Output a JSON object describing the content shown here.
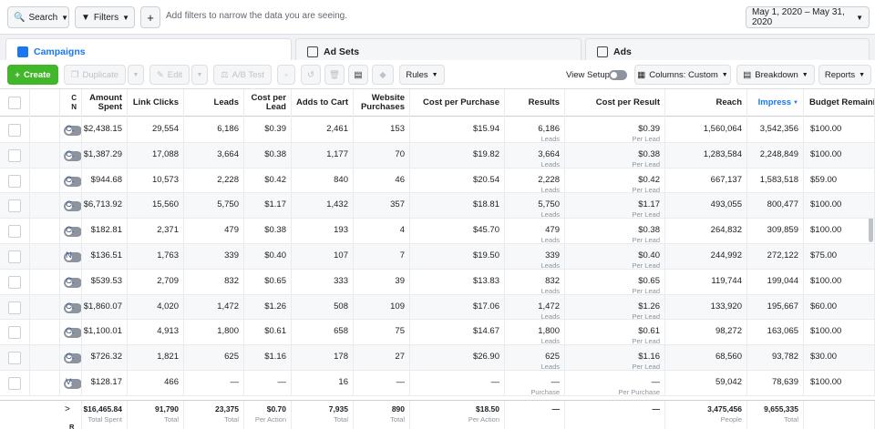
{
  "topbar": {
    "search_label": "Search",
    "filters_label": "Filters",
    "add_label": "+",
    "filter_hint": "Add filters to narrow the data you are seeing.",
    "date_range": "May 1, 2020 – May 31, 2020"
  },
  "tabs": [
    {
      "label": "Campaigns",
      "active": true
    },
    {
      "label": "Ad Sets",
      "active": false
    },
    {
      "label": "Ads",
      "active": false
    }
  ],
  "toolbar": {
    "create": "Create",
    "duplicate": "Duplicate",
    "edit": "Edit",
    "ab_test": "A/B Test",
    "rules": "Rules",
    "view_setup": "View Setup",
    "columns": "Columns: Custom",
    "breakdown": "Breakdown",
    "reports": "Reports"
  },
  "columns": {
    "name": "C N",
    "amount_spent": "Amount Spent",
    "link_clicks": "Link Clicks",
    "leads": "Leads",
    "cost_per_lead": "Cost per Lead",
    "adds_to_cart": "Adds to Cart",
    "website_purchases": "Website Purchases",
    "cost_per_purchase": "Cost per Purchase",
    "results": "Results",
    "cost_per_result": "Cost per Result",
    "reach": "Reach",
    "impressions": "Impress",
    "budget": "Budget Remainin"
  },
  "rows": [
    {
      "name": "C.",
      "spent": "$2,438.15",
      "clicks": "29,554",
      "leads": "6,186",
      "cpl": "$0.39",
      "cart": "2,461",
      "purch": "153",
      "cpp": "$15.94",
      "results": "6,186",
      "results_sub": "Leads",
      "cpr": "$0.39",
      "cpr_sub": "Per Lead",
      "reach": "1,560,064",
      "impr": "3,542,356",
      "budget": "$100.00"
    },
    {
      "name": "C.",
      "spent": "$1,387.29",
      "clicks": "17,088",
      "leads": "3,664",
      "cpl": "$0.38",
      "cart": "1,177",
      "purch": "70",
      "cpp": "$19.82",
      "results": "3,664",
      "results_sub": "Leads",
      "cpr": "$0.38",
      "cpr_sub": "Per Lead",
      "reach": "1,283,584",
      "impr": "2,248,849",
      "budget": "$100.00"
    },
    {
      "name": "C.",
      "spent": "$944.68",
      "clicks": "10,573",
      "leads": "2,228",
      "cpl": "$0.42",
      "cart": "840",
      "purch": "46",
      "cpp": "$20.54",
      "results": "2,228",
      "results_sub": "Leads",
      "cpr": "$0.42",
      "cpr_sub": "Per Lead",
      "reach": "667,137",
      "impr": "1,583,518",
      "budget": "$59.00"
    },
    {
      "name": "C.",
      "spent": "$6,713.92",
      "clicks": "15,560",
      "leads": "5,750",
      "cpl": "$1.17",
      "cart": "1,432",
      "purch": "357",
      "cpp": "$18.81",
      "results": "5,750",
      "results_sub": "Leads",
      "cpr": "$1.17",
      "cpr_sub": "Per Lead",
      "reach": "493,055",
      "impr": "800,477",
      "budget": "$100.00"
    },
    {
      "name": "C.",
      "spent": "$182.81",
      "clicks": "2,371",
      "leads": "479",
      "cpl": "$0.38",
      "cart": "193",
      "purch": "4",
      "cpp": "$45.70",
      "results": "479",
      "results_sub": "Leads",
      "cpr": "$0.38",
      "cpr_sub": "Per Lead",
      "reach": "264,832",
      "impr": "309,859",
      "budget": "$100.00"
    },
    {
      "name": "N",
      "spent": "$136.51",
      "clicks": "1,763",
      "leads": "339",
      "cpl": "$0.40",
      "cart": "107",
      "purch": "7",
      "cpp": "$19.50",
      "results": "339",
      "results_sub": "Leads",
      "cpr": "$0.40",
      "cpr_sub": "Per Lead",
      "reach": "244,992",
      "impr": "272,122",
      "budget": "$75.00"
    },
    {
      "name": "C.",
      "spent": "$539.53",
      "clicks": "2,709",
      "leads": "832",
      "cpl": "$0.65",
      "cart": "333",
      "purch": "39",
      "cpp": "$13.83",
      "results": "832",
      "results_sub": "Leads",
      "cpr": "$0.65",
      "cpr_sub": "Per Lead",
      "reach": "119,744",
      "impr": "199,044",
      "budget": "$100.00"
    },
    {
      "name": "C.",
      "spent": "$1,860.07",
      "clicks": "4,020",
      "leads": "1,472",
      "cpl": "$1.26",
      "cart": "508",
      "purch": "109",
      "cpp": "$17.06",
      "results": "1,472",
      "results_sub": "Leads",
      "cpr": "$1.26",
      "cpr_sub": "Per Lead",
      "reach": "133,920",
      "impr": "195,667",
      "budget": "$60.00"
    },
    {
      "name": "C.",
      "spent": "$1,100.01",
      "clicks": "4,913",
      "leads": "1,800",
      "cpl": "$0.61",
      "cart": "658",
      "purch": "75",
      "cpp": "$14.67",
      "results": "1,800",
      "results_sub": "Leads",
      "cpr": "$0.61",
      "cpr_sub": "Per Lead",
      "reach": "98,272",
      "impr": "163,065",
      "budget": "$100.00"
    },
    {
      "name": "C.",
      "spent": "$726.32",
      "clicks": "1,821",
      "leads": "625",
      "cpl": "$1.16",
      "cart": "178",
      "purch": "27",
      "cpp": "$26.90",
      "results": "625",
      "results_sub": "Leads",
      "cpr": "$1.16",
      "cpr_sub": "Per Lead",
      "reach": "68,560",
      "impr": "93,782",
      "budget": "$30.00"
    },
    {
      "name": "V.",
      "spent": "$128.17",
      "clicks": "466",
      "leads": "—",
      "cpl": "—",
      "cart": "16",
      "purch": "—",
      "cpp": "—",
      "results": "—",
      "results_sub": "Purchase",
      "cpr": "—",
      "cpr_sub": "Per Purchase",
      "reach": "59,042",
      "impr": "78,639",
      "budget": "$100.00"
    }
  ],
  "totals": {
    "expand": ">",
    "label": "R",
    "spent": "$16,465.84",
    "spent_sub": "Total Spent",
    "clicks": "91,790",
    "clicks_sub": "Total",
    "leads": "23,375",
    "leads_sub": "Total",
    "cpl": "$0.70",
    "cpl_sub": "Per Action",
    "cart": "7,935",
    "cart_sub": "Total",
    "purch": "890",
    "purch_sub": "Total",
    "cpp": "$18.50",
    "cpp_sub": "Per Action",
    "results": "—",
    "cpr": "—",
    "reach": "3,475,456",
    "reach_sub": "People",
    "impr": "9,655,335",
    "impr_sub": "Total"
  }
}
